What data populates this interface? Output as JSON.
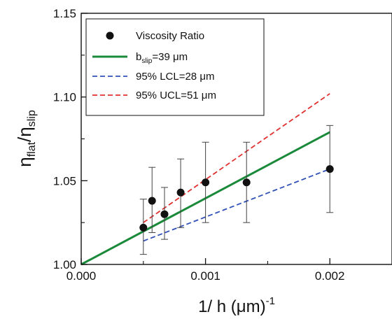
{
  "chart_data": {
    "type": "scatter",
    "xlabel": {
      "base": "1/ h (",
      "unit": "μm",
      "close": ")",
      "sup": "-1"
    },
    "ylabel": {
      "num": "η",
      "num_sub": "flat",
      "sep": "/",
      "den": "η",
      "den_sub": "slip"
    },
    "xlim": [
      0.0,
      0.0025
    ],
    "ylim": [
      1.0,
      1.15
    ],
    "x_ticks": [
      {
        "value": 0.0,
        "label": "0.000"
      },
      {
        "value": 0.001,
        "label": "0.001"
      },
      {
        "value": 0.002,
        "label": "0.002"
      }
    ],
    "y_ticks": [
      {
        "value": 1.0,
        "label": "1.00"
      },
      {
        "value": 1.05,
        "label": "1.05"
      },
      {
        "value": 1.1,
        "label": "1.10"
      },
      {
        "value": 1.15,
        "label": "1.15"
      }
    ],
    "points": {
      "name": "Viscosity Ratio",
      "color": "#111111",
      "x": [
        0.0005,
        0.00057,
        0.00067,
        0.0008,
        0.001,
        0.00133,
        0.002
      ],
      "y": [
        1.022,
        1.038,
        1.03,
        1.043,
        1.049,
        1.049,
        1.057
      ],
      "err_low": [
        1.006,
        1.019,
        1.015,
        1.022,
        1.025,
        1.025,
        1.031
      ],
      "err_high": [
        1.039,
        1.058,
        1.046,
        1.063,
        1.073,
        1.073,
        1.083
      ]
    },
    "lines": [
      {
        "name": "b_slip=39 μm",
        "label_pre": "b",
        "label_sub": "slip",
        "label_post": "=39 μm",
        "color": "#1a8a3a",
        "style": "solid",
        "x": [
          0.0,
          0.002
        ],
        "y": [
          1.0,
          1.079
        ]
      },
      {
        "name": "95% LCL=28 μm",
        "label_pre": "95% LCL=28 μm",
        "label_sub": "",
        "label_post": "",
        "color": "#3050b8",
        "style": "dashed",
        "x": [
          0.0005,
          0.002
        ],
        "y": [
          1.014,
          1.057
        ]
      },
      {
        "name": "95% UCL=51 μm",
        "label_pre": "95% UCL=51 μm",
        "label_sub": "",
        "label_post": "",
        "color": "#e03030",
        "style": "dashed",
        "x": [
          0.0005,
          0.002
        ],
        "y": [
          1.025,
          1.102
        ]
      }
    ],
    "legend": "top-left"
  }
}
